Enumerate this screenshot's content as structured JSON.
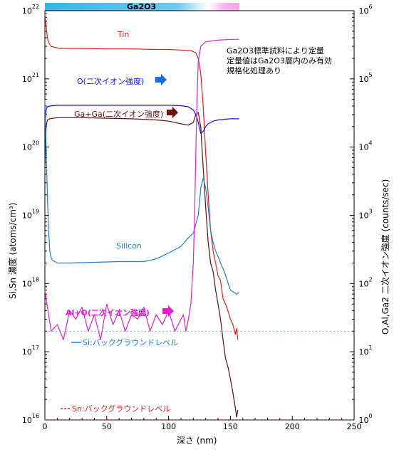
{
  "chart_data": {
    "type": "line",
    "layer_label": "Ga2O3",
    "xlabel": "深さ (nm)",
    "ylabel_left": "Si,Sn 濃度 (atoms/cm³)",
    "ylabel_right": "O,Al,Ga2 二次イオン強度 (counts/sec)",
    "xlim": [
      0,
      250
    ],
    "x_ticks": [
      "0",
      "50",
      "100",
      "150",
      "200",
      "250"
    ],
    "ylim_left": [
      1e+16,
      1e+22
    ],
    "ylim_right": [
      1.0,
      1000000.0
    ],
    "y_scale": "log",
    "left_ticks": [
      {
        "base": "10",
        "exp": "16"
      },
      {
        "base": "10",
        "exp": "17"
      },
      {
        "base": "10",
        "exp": "18"
      },
      {
        "base": "10",
        "exp": "19"
      },
      {
        "base": "10",
        "exp": "20"
      },
      {
        "base": "10",
        "exp": "21"
      },
      {
        "base": "10",
        "exp": "22"
      }
    ],
    "right_ticks": [
      {
        "base": "10",
        "exp": "0"
      },
      {
        "base": "10",
        "exp": "1"
      },
      {
        "base": "10",
        "exp": "2"
      },
      {
        "base": "10",
        "exp": "3"
      },
      {
        "base": "10",
        "exp": "4"
      },
      {
        "base": "10",
        "exp": "5"
      },
      {
        "base": "10",
        "exp": "6"
      }
    ],
    "note": [
      "Ga2O3標準試料により定量",
      "定量値はGa2O3層内のみ有効",
      "規格化処理あり"
    ],
    "labels": {
      "tin": "Tin",
      "oxygen": "O(二次イオン強度)",
      "gaga": "Ga+Ga(二次イオン強度)",
      "silicon": "Silicon",
      "alo": "Al+O(二次イオン強度)",
      "si_bg": "Si:バックグラウンドレベル",
      "sn_bg": "Sn:バックグラウンドレベル"
    },
    "series": [
      {
        "name": "Tin",
        "axis": "left",
        "color": "#e02020",
        "x": [
          0,
          1,
          2,
          3,
          5,
          8,
          12,
          20,
          30,
          50,
          70,
          90,
          100,
          110,
          118,
          122,
          124,
          126,
          128,
          130,
          132,
          134,
          136,
          138,
          140,
          142,
          144,
          146,
          148,
          150,
          152,
          154,
          155,
          156
        ],
        "y": [
          9e+21,
          6e+21,
          4e+21,
          3.4e+21,
          3e+21,
          2.9e+21,
          2.8e+21,
          2.8e+21,
          2.8e+21,
          2.75e+21,
          2.75e+21,
          2.7e+21,
          2.7e+21,
          2.65e+21,
          2.6e+21,
          2.4e+21,
          2e+21,
          1.2e+21,
          4e+20,
          8e+19,
          2e+19,
          6e+18,
          3e+18,
          2e+18,
          1.3e+18,
          1.1e+18,
          6e+17,
          5e+17,
          4e+17,
          3e+17,
          2.5e+17,
          1.8e+17,
          2.2e+17,
          1.5e+17
        ]
      },
      {
        "name": "O(二次イオン強度)",
        "axis": "right",
        "color": "#1010e0",
        "x": [
          0,
          1,
          2,
          4,
          10,
          30,
          50,
          70,
          90,
          100,
          110,
          116,
          120,
          122,
          124,
          126,
          128,
          130,
          132,
          136,
          140,
          150,
          157
        ],
        "y": [
          20000.0,
          35000.0,
          39000.0,
          40000.0,
          41000.0,
          41000.0,
          41000.0,
          41000.0,
          41000.0,
          41000.0,
          40500.0,
          39000.0,
          35000.0,
          30000.0,
          23000.0,
          16000.0,
          17000.0,
          20000.0,
          22000.0,
          24000.0,
          25000.0,
          26000.0,
          26000.0
        ]
      },
      {
        "name": "Ga+Ga(二次イオン強度)",
        "axis": "right",
        "color": "#5a1010",
        "x": [
          0,
          1,
          2,
          4,
          10,
          30,
          50,
          70,
          90,
          100,
          110,
          116,
          120,
          122,
          124,
          126,
          128,
          130,
          132,
          134,
          136,
          138,
          140,
          142,
          144,
          146,
          148,
          150,
          152,
          154,
          155,
          156
        ],
        "y": [
          5000.0,
          20000.0,
          25000.0,
          26000.0,
          27000.0,
          27000.0,
          26500.0,
          26000.0,
          25000.0,
          24000.0,
          22000.0,
          21000.0,
          23000.0,
          30000.0,
          32000.0,
          20000.0,
          5000.0,
          1300.0,
          400,
          200,
          150,
          80,
          50,
          30,
          15,
          8,
          6,
          4,
          2.5,
          1.5,
          1.1,
          1.4
        ]
      },
      {
        "name": "Silicon",
        "axis": "left",
        "color": "#2080c8",
        "x": [
          0,
          1,
          2,
          3,
          4,
          5,
          6,
          8,
          10,
          20,
          40,
          60,
          80,
          90,
          100,
          110,
          115,
          120,
          124,
          126,
          128,
          130,
          132,
          134,
          136,
          138,
          140,
          142,
          145,
          150,
          155,
          157
        ],
        "y": [
          5e+20,
          1e+20,
          2e+19,
          6e+18,
          3e+18,
          2.4e+18,
          2.2e+18,
          2.1e+18,
          2e+18,
          2e+18,
          2.05e+18,
          2.1e+18,
          2.1e+18,
          2.3e+18,
          2.8e+18,
          3.5e+18,
          4.5e+18,
          5.5e+18,
          1e+19,
          2.5e+19,
          3.5e+19,
          2.5e+19,
          1.3e+19,
          6e+18,
          4e+18,
          3e+18,
          2.5e+18,
          2e+18,
          1.5e+18,
          8e+17,
          7e+17,
          7.5e+17
        ]
      },
      {
        "name": "Al+O(二次イオン強度)",
        "axis": "right",
        "color": "#e020d0",
        "x": [
          0,
          5,
          10,
          15,
          20,
          25,
          30,
          35,
          40,
          45,
          50,
          55,
          60,
          65,
          70,
          75,
          80,
          85,
          90,
          95,
          100,
          105,
          110,
          112,
          114,
          116,
          118,
          120,
          121,
          122,
          123,
          124,
          126,
          130,
          140,
          150,
          157
        ],
        "y": [
          80,
          20,
          25,
          15,
          40,
          30,
          45,
          20,
          35,
          15,
          50,
          25,
          40,
          20,
          35,
          30,
          45,
          20,
          35,
          25,
          40,
          20,
          30,
          35,
          20,
          30,
          50,
          200,
          1000.0,
          8000.0,
          50000.0,
          180000.0,
          300000.0,
          350000.0,
          370000.0,
          380000.0,
          380000.0
        ]
      }
    ],
    "baselines": [
      {
        "name": "Si:バックグラウンドレベル",
        "axis": "left",
        "value": 2e+17,
        "color": "#2080c8"
      },
      {
        "name": "Sn:バックグラウンドレベル",
        "axis": "left",
        "value": 1e+16,
        "color": "#e02020"
      }
    ]
  }
}
